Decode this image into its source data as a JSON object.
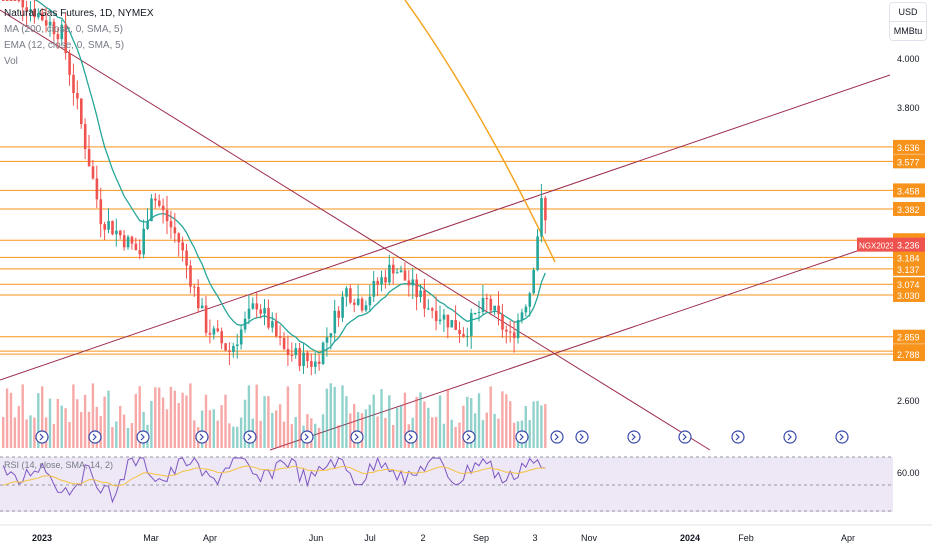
{
  "legend": {
    "title": "Natural Gas Futures, 1D, NYMEX",
    "ma": "MA (200, close, 0, SMA, 5)",
    "ema": "EMA (12, close, 0, SMA, 5)",
    "vol": "Vol",
    "rsi": "RSI (14, close, SMA, 14, 2)"
  },
  "units": {
    "currency": "USD",
    "unit": "MMBtu"
  },
  "colors": {
    "up": "#26a69a",
    "down": "#ef5350",
    "level": "#f7931a",
    "trend": "#9c2c4a",
    "ma": "#f5a623",
    "ema": "#26a69a",
    "rsi": "#7e57c2",
    "rsi_ma": "#f5c242",
    "rsi_bg": "#ede7f6"
  },
  "chart_data": {
    "type": "candlestick",
    "y_axis_ticks": [
      "4.000",
      "3.800",
      "2.600"
    ],
    "ylim": [
      2.45,
      4.1
    ],
    "x_axis_labels": [
      "2023",
      "Mar",
      "Apr",
      "Jun",
      "Jul",
      "2",
      "Sep",
      "3",
      "Nov",
      "2024",
      "Feb",
      "Apr"
    ],
    "horizontal_levels": [
      3.636,
      3.577,
      3.458,
      3.382,
      3.254,
      3.184,
      3.137,
      3.074,
      3.03,
      2.859,
      2.8,
      2.788
    ],
    "level_labels": [
      "3.636",
      "3.577",
      "3.458",
      "3.382",
      "3.254",
      "3.184",
      "3.137",
      "3.074",
      "3.030",
      "2.859",
      "2.800",
      "2.788"
    ],
    "current_price": {
      "symbol": "NGX2023",
      "value": "3.236",
      "price": 3.236
    },
    "rsi_level_label": "60.00",
    "series": [
      {
        "name": "MA (200, close, 0, SMA, 5)"
      },
      {
        "name": "EMA (12, close, 0, SMA, 5)"
      },
      {
        "name": "Vol"
      },
      {
        "name": "RSI (14, close, SMA, 14, 2)"
      }
    ]
  }
}
